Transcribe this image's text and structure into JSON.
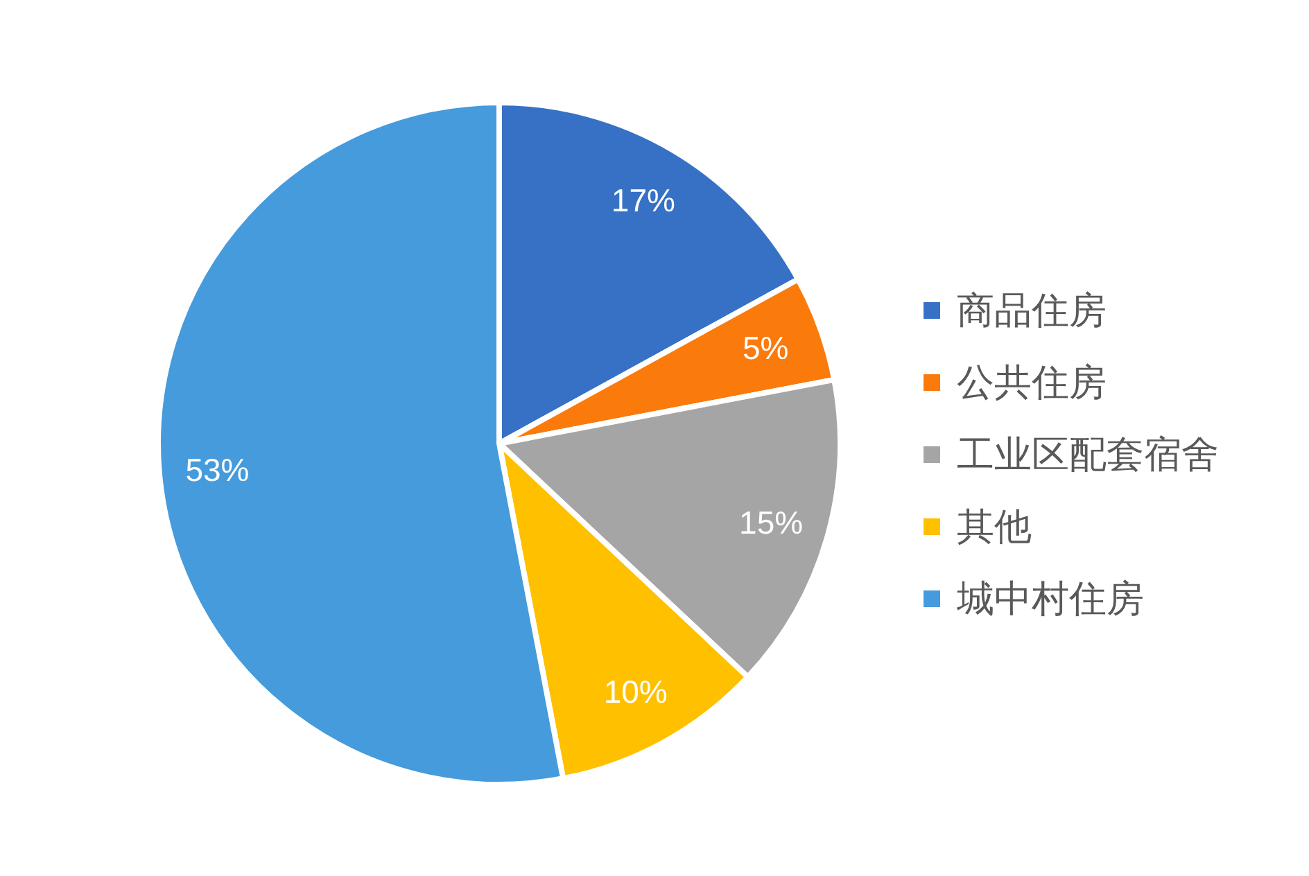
{
  "chart_data": {
    "type": "pie",
    "categories": [
      "商品住房",
      "公共住房",
      "工业区配套宿舍",
      "其他",
      "城中村住房"
    ],
    "values": [
      17,
      5,
      15,
      10,
      53
    ],
    "colors": [
      "#3671c6",
      "#fb7a0c",
      "#a5a5a5",
      "#ffc000",
      "#459bdb"
    ],
    "value_labels": [
      "17%",
      "5%",
      "15%",
      "10%",
      "53%"
    ],
    "legend": "right"
  }
}
